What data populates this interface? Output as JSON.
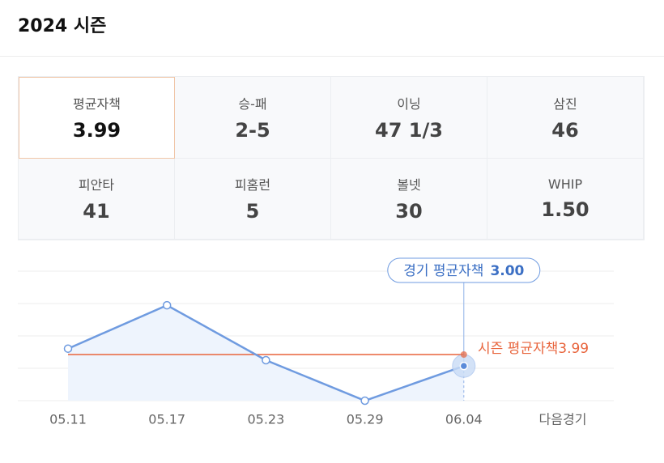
{
  "header": {
    "title": "2024 시즌"
  },
  "stats": [
    {
      "label": "평균자책",
      "value": 3.99
    },
    {
      "label": "승-패",
      "value": "2-5"
    },
    {
      "label": "이닝",
      "value": "47 1/3"
    },
    {
      "label": "삼진",
      "value": 46
    },
    {
      "label": "피안타",
      "value": 41
    },
    {
      "label": "피홈런",
      "value": 5
    },
    {
      "label": "볼넷",
      "value": 30
    },
    {
      "label": "WHIP",
      "value": "1.50"
    }
  ],
  "chart_data": {
    "type": "line",
    "categories": [
      "05.11",
      "05.17",
      "05.23",
      "05.29",
      "06.04",
      "다음경기"
    ],
    "series": [
      {
        "name": "경기 평균자책",
        "color": "#6f9be0",
        "values": [
          4.5,
          8.25,
          3.5,
          0,
          3.0,
          null
        ],
        "value_labels": [
          null,
          null,
          null,
          null,
          "3.00",
          null
        ]
      }
    ],
    "season_average": {
      "label": "시즌 평균자책",
      "value": 3.99,
      "color": "#e8643c"
    },
    "ylim": [
      0,
      11.2
    ],
    "yticks": [
      0,
      2.8,
      5.6,
      8.4,
      11.2
    ],
    "grid": true
  }
}
